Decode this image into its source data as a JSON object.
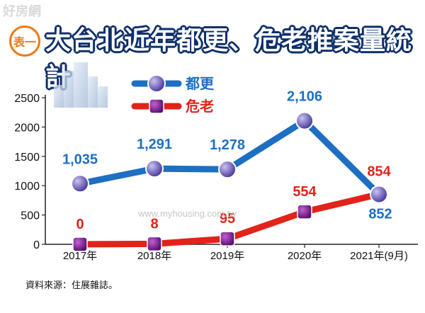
{
  "header": {
    "watermark": "好房網",
    "badge": "表一",
    "title": "大台北近年都更、危老推案量統計"
  },
  "watermark_site": "www.myhousing.com.tw",
  "source": "資料來源：住展雜誌。",
  "colors": {
    "renewal": "#1d6fc2",
    "oldbuild": "#e2231a",
    "marker_renewal": "#6a52b8",
    "marker_oldbuild": "#7a1f8c"
  },
  "chart_data": {
    "type": "line",
    "categories": [
      "2017年",
      "2018年",
      "2019年",
      "2020年",
      "2021年(9月)"
    ],
    "series": [
      {
        "name": "都更",
        "values": [
          1035,
          1291,
          1278,
          2106,
          852
        ],
        "labels": [
          "1,035",
          "1,291",
          "1,278",
          "2,106",
          "852"
        ]
      },
      {
        "name": "危老",
        "values": [
          0,
          8,
          95,
          554,
          854
        ],
        "labels": [
          "0",
          "8",
          "95",
          "554",
          "854"
        ]
      }
    ],
    "ylim": [
      0,
      2500
    ],
    "yticks": [
      "0",
      "500",
      "1000",
      "1500",
      "2000",
      "2500"
    ],
    "legend": "top-left",
    "grid": false
  }
}
